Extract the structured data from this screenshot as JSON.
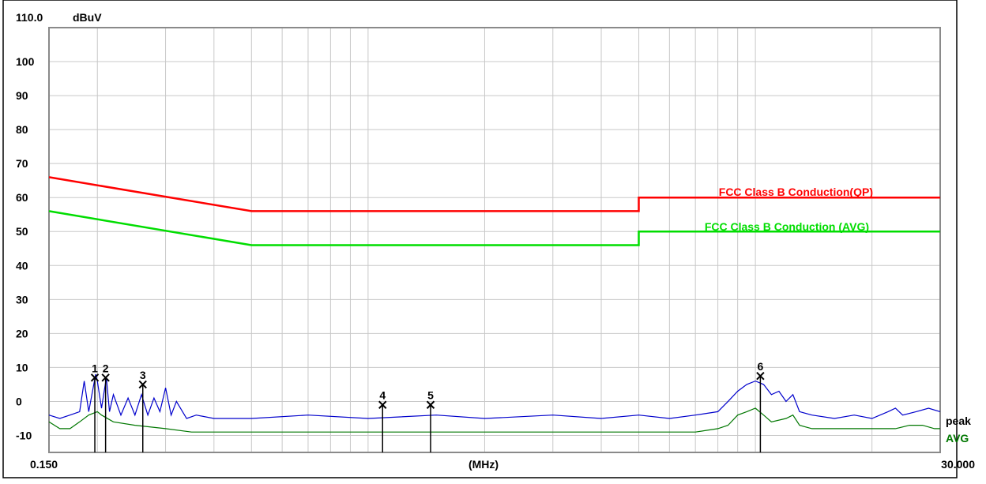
{
  "chart_data": {
    "type": "line",
    "title": "",
    "y_unit": "dBuV",
    "x_unit": "(MHz)",
    "xlim": [
      0.15,
      30.0
    ],
    "ylim": [
      -15,
      110
    ],
    "x_scale": "log",
    "grid": true,
    "x_tick_labels": [
      "0.150",
      "30.000"
    ],
    "y_top_label": "110.0",
    "y_ticks": [
      100,
      90,
      80,
      70,
      60,
      50,
      40,
      30,
      20,
      10,
      0,
      -10
    ],
    "y_tick_labels": [
      "100",
      "90",
      "80",
      "70",
      "60",
      "50",
      "40",
      "30",
      "20",
      "10",
      "0",
      "-10"
    ],
    "limit_lines": [
      {
        "name": "FCC Class B Conduction(QP)",
        "color": "#ff0000",
        "points": [
          [
            0.15,
            66
          ],
          [
            0.5,
            56
          ],
          [
            5.0,
            56
          ],
          [
            5.0,
            60
          ],
          [
            30.0,
            60
          ]
        ]
      },
      {
        "name": "FCC Class B Conduction (AVG)",
        "color": "#00dd00",
        "points": [
          [
            0.15,
            56
          ],
          [
            0.5,
            46
          ],
          [
            5.0,
            46
          ],
          [
            5.0,
            50
          ],
          [
            30.0,
            50
          ]
        ]
      }
    ],
    "series": [
      {
        "name": "peak",
        "color": "#0000cc",
        "label_color": "#000000",
        "points": [
          [
            0.15,
            -4
          ],
          [
            0.16,
            -5
          ],
          [
            0.17,
            -4
          ],
          [
            0.18,
            -3
          ],
          [
            0.185,
            6
          ],
          [
            0.19,
            -3
          ],
          [
            0.198,
            8
          ],
          [
            0.2,
            6
          ],
          [
            0.205,
            -2
          ],
          [
            0.211,
            7
          ],
          [
            0.215,
            -3
          ],
          [
            0.22,
            2
          ],
          [
            0.23,
            -4
          ],
          [
            0.24,
            1
          ],
          [
            0.25,
            -4
          ],
          [
            0.26,
            2
          ],
          [
            0.27,
            -4
          ],
          [
            0.28,
            1
          ],
          [
            0.29,
            -3
          ],
          [
            0.3,
            4
          ],
          [
            0.31,
            -4
          ],
          [
            0.32,
            0
          ],
          [
            0.34,
            -5
          ],
          [
            0.36,
            -4
          ],
          [
            0.4,
            -5
          ],
          [
            0.5,
            -5
          ],
          [
            0.7,
            -4
          ],
          [
            1.0,
            -5
          ],
          [
            1.5,
            -4
          ],
          [
            2.0,
            -5
          ],
          [
            3.0,
            -4
          ],
          [
            4.0,
            -5
          ],
          [
            5.0,
            -4
          ],
          [
            6.0,
            -5
          ],
          [
            7.0,
            -4
          ],
          [
            8.0,
            -3
          ],
          [
            8.5,
            0
          ],
          [
            9.0,
            3
          ],
          [
            9.5,
            5
          ],
          [
            10.0,
            6
          ],
          [
            10.5,
            5
          ],
          [
            11.0,
            2
          ],
          [
            11.5,
            3
          ],
          [
            12.0,
            0
          ],
          [
            12.5,
            2
          ],
          [
            13.0,
            -3
          ],
          [
            14.0,
            -4
          ],
          [
            16.0,
            -5
          ],
          [
            18.0,
            -4
          ],
          [
            20.0,
            -5
          ],
          [
            22.0,
            -3
          ],
          [
            23.0,
            -2
          ],
          [
            24.0,
            -4
          ],
          [
            26.0,
            -3
          ],
          [
            28.0,
            -2
          ],
          [
            30.0,
            -3
          ]
        ]
      },
      {
        "name": "AVG",
        "color": "#007700",
        "label_color": "#007700",
        "points": [
          [
            0.15,
            -6
          ],
          [
            0.16,
            -8
          ],
          [
            0.17,
            -8
          ],
          [
            0.18,
            -6
          ],
          [
            0.19,
            -4
          ],
          [
            0.2,
            -3
          ],
          [
            0.205,
            -4
          ],
          [
            0.22,
            -6
          ],
          [
            0.25,
            -7
          ],
          [
            0.3,
            -8
          ],
          [
            0.35,
            -9
          ],
          [
            0.5,
            -9
          ],
          [
            1.0,
            -9
          ],
          [
            2.0,
            -9
          ],
          [
            3.0,
            -9
          ],
          [
            4.0,
            -9
          ],
          [
            5.0,
            -9
          ],
          [
            6.0,
            -9
          ],
          [
            7.0,
            -9
          ],
          [
            8.0,
            -8
          ],
          [
            8.5,
            -7
          ],
          [
            9.0,
            -4
          ],
          [
            9.5,
            -3
          ],
          [
            10.0,
            -2
          ],
          [
            10.5,
            -4
          ],
          [
            11.0,
            -6
          ],
          [
            12.0,
            -5
          ],
          [
            12.5,
            -4
          ],
          [
            13.0,
            -7
          ],
          [
            14.0,
            -8
          ],
          [
            16.0,
            -8
          ],
          [
            18.0,
            -8
          ],
          [
            20.0,
            -8
          ],
          [
            23.0,
            -8
          ],
          [
            25.0,
            -7
          ],
          [
            27.0,
            -7
          ],
          [
            29.0,
            -8
          ],
          [
            30.0,
            -8
          ]
        ]
      }
    ],
    "markers": [
      {
        "label": "1",
        "x": 0.197,
        "y": 7
      },
      {
        "label": "2",
        "x": 0.21,
        "y": 7
      },
      {
        "label": "3",
        "x": 0.262,
        "y": 5
      },
      {
        "label": "4",
        "x": 1.09,
        "y": -1
      },
      {
        "label": "5",
        "x": 1.45,
        "y": -1
      },
      {
        "label": "6",
        "x": 10.3,
        "y": 7.5
      }
    ]
  }
}
